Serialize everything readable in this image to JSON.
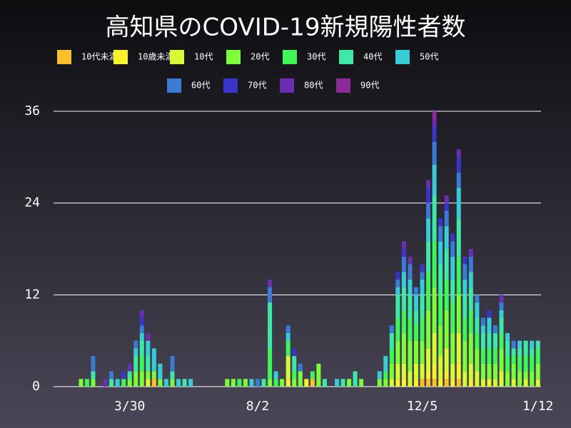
{
  "chart_data": {
    "type": "stacked_bar",
    "title": "高知県のCOVID-19新規陽性者数",
    "categories": [
      null,
      null,
      null,
      null,
      null,
      null,
      null,
      null,
      null,
      null,
      null,
      null,
      "3/30",
      null,
      null,
      null,
      null,
      null,
      null,
      null,
      null,
      null,
      null,
      null,
      null,
      null,
      null,
      null,
      null,
      null,
      null,
      null,
      null,
      "8/2",
      null,
      null,
      null,
      null,
      null,
      null,
      null,
      null,
      null,
      null,
      null,
      null,
      null,
      null,
      null,
      null,
      null,
      null,
      null,
      null,
      null,
      null,
      null,
      null,
      null,
      null,
      "12/5",
      null,
      null,
      null,
      null,
      null,
      null,
      null,
      null,
      null,
      null,
      null,
      null,
      null,
      null,
      null,
      null,
      null,
      null,
      "1/12"
    ],
    "ylim": [
      0,
      36
    ],
    "yticks": [
      0,
      12,
      24,
      36
    ],
    "grid": true,
    "series": [
      {
        "name": "10代未満",
        "color": "#f9c02c",
        "values": [
          0,
          0,
          0,
          0,
          0,
          0,
          0,
          0,
          0,
          0,
          0,
          0,
          0,
          0,
          0,
          0,
          1,
          0,
          0,
          0,
          0,
          0,
          0,
          0,
          0,
          0,
          0,
          0,
          0,
          0,
          0,
          0,
          0,
          0,
          0,
          0,
          0,
          0,
          0,
          0,
          0,
          0,
          1,
          0,
          0,
          0,
          0,
          0,
          0,
          0,
          0,
          0,
          0,
          0,
          0,
          0,
          0,
          0,
          0,
          0,
          1,
          1,
          1,
          0,
          1,
          0,
          1,
          0,
          0,
          0,
          0,
          0,
          0,
          0,
          0,
          0,
          0,
          0,
          0,
          0
        ]
      },
      {
        "name": "10歳未満",
        "color": "#f7f22b",
        "values": [
          0,
          0,
          0,
          0,
          0,
          0,
          0,
          0,
          0,
          0,
          0,
          0,
          0,
          0,
          0,
          0,
          0,
          0,
          0,
          0,
          0,
          0,
          0,
          0,
          0,
          0,
          0,
          0,
          0,
          0,
          0,
          0,
          0,
          0,
          0,
          0,
          0,
          0,
          1,
          0,
          0,
          1,
          0,
          0,
          0,
          0,
          0,
          0,
          0,
          0,
          0,
          0,
          0,
          0,
          0,
          0,
          1,
          1,
          0,
          1,
          0,
          1,
          2,
          1,
          1,
          1,
          2,
          0,
          1,
          0,
          0,
          1,
          0,
          0,
          0,
          0,
          0,
          0,
          0,
          0
        ]
      },
      {
        "name": "10代",
        "color": "#d5fb36",
        "values": [
          0,
          0,
          0,
          0,
          0,
          0,
          0,
          0,
          0,
          0,
          0,
          0,
          0,
          0,
          0,
          1,
          0,
          0,
          0,
          0,
          0,
          0,
          0,
          0,
          0,
          0,
          0,
          0,
          0,
          0,
          0,
          0,
          0,
          0,
          0,
          0,
          0,
          0,
          3,
          0,
          0,
          0,
          0,
          0,
          0,
          0,
          0,
          0,
          0,
          0,
          0,
          0,
          0,
          0,
          0,
          1,
          2,
          2,
          2,
          2,
          2,
          3,
          4,
          3,
          3,
          2,
          4,
          2,
          2,
          2,
          1,
          0,
          1,
          2,
          0,
          1,
          0,
          1,
          0,
          1
        ]
      },
      {
        "name": "20代",
        "color": "#7dfc3c",
        "values": [
          0,
          0,
          0,
          0,
          1,
          0,
          1,
          0,
          0,
          0,
          0,
          0,
          1,
          2,
          2,
          1,
          1,
          1,
          0,
          1,
          0,
          0,
          0,
          0,
          0,
          0,
          0,
          0,
          1,
          1,
          0,
          1,
          0,
          0,
          0,
          1,
          0,
          1,
          0,
          1,
          2,
          0,
          0,
          3,
          0,
          0,
          0,
          0,
          1,
          0,
          1,
          0,
          0,
          1,
          1,
          2,
          3,
          4,
          4,
          3,
          3,
          5,
          6,
          4,
          5,
          4,
          5,
          4,
          4,
          3,
          2,
          2,
          2,
          3,
          2,
          2,
          2,
          1,
          2,
          2
        ]
      },
      {
        "name": "30代",
        "color": "#3ef55a",
        "values": [
          0,
          0,
          0,
          0,
          0,
          1,
          0,
          0,
          0,
          0,
          0,
          1,
          0,
          0,
          2,
          0,
          0,
          0,
          0,
          0,
          0,
          0,
          0,
          0,
          0,
          0,
          0,
          0,
          0,
          0,
          1,
          0,
          0,
          0,
          0,
          4,
          1,
          0,
          2,
          1,
          0,
          0,
          1,
          0,
          0,
          0,
          0,
          0,
          0,
          0,
          0,
          0,
          0,
          0,
          1,
          2,
          3,
          3,
          3,
          2,
          3,
          5,
          6,
          4,
          4,
          4,
          5,
          3,
          3,
          2,
          2,
          2,
          2,
          2,
          2,
          1,
          2,
          2,
          2,
          2
        ]
      },
      {
        "name": "40代",
        "color": "#3ee8a7",
        "values": [
          0,
          0,
          0,
          0,
          0,
          0,
          1,
          0,
          0,
          1,
          0,
          0,
          1,
          2,
          2,
          2,
          0,
          0,
          0,
          1,
          0,
          1,
          0,
          0,
          0,
          0,
          0,
          0,
          0,
          0,
          0,
          0,
          0,
          0,
          1,
          6,
          0,
          0,
          0,
          2,
          0,
          0,
          0,
          0,
          1,
          0,
          0,
          1,
          0,
          2,
          0,
          0,
          0,
          0,
          0,
          2,
          3,
          3,
          3,
          2,
          3,
          4,
          6,
          4,
          4,
          3,
          5,
          3,
          3,
          2,
          2,
          2,
          2,
          2,
          2,
          1,
          1,
          2,
          1,
          1
        ]
      },
      {
        "name": "50代",
        "color": "#38cbd8",
        "values": [
          0,
          0,
          0,
          0,
          0,
          0,
          0,
          0,
          0,
          0,
          1,
          0,
          0,
          1,
          1,
          2,
          3,
          2,
          1,
          0,
          1,
          0,
          1,
          0,
          0,
          0,
          0,
          0,
          0,
          0,
          0,
          0,
          1,
          0,
          0,
          0,
          1,
          0,
          1,
          0,
          0,
          0,
          0,
          0,
          0,
          0,
          1,
          0,
          0,
          0,
          0,
          0,
          0,
          1,
          2,
          0,
          1,
          2,
          2,
          2,
          2,
          3,
          4,
          3,
          3,
          3,
          4,
          2,
          2,
          2,
          1,
          2,
          0,
          1,
          1,
          0,
          1,
          0,
          1,
          0
        ]
      },
      {
        "name": "60代",
        "color": "#3a7bd5",
        "values": [
          0,
          0,
          0,
          0,
          0,
          0,
          2,
          0,
          0,
          1,
          0,
          0,
          0,
          1,
          1,
          0,
          0,
          0,
          0,
          2,
          0,
          0,
          0,
          0,
          0,
          0,
          0,
          0,
          0,
          0,
          0,
          0,
          0,
          1,
          0,
          2,
          0,
          0,
          1,
          0,
          1,
          0,
          0,
          0,
          0,
          0,
          0,
          0,
          0,
          0,
          0,
          0,
          0,
          0,
          0,
          1,
          1,
          2,
          2,
          1,
          1,
          2,
          3,
          2,
          2,
          2,
          2,
          2,
          2,
          1,
          1,
          0,
          1,
          1,
          0,
          1,
          0,
          0,
          0,
          0
        ]
      },
      {
        "name": "70代",
        "color": "#3a35c8",
        "values": [
          0,
          0,
          0,
          0,
          0,
          0,
          0,
          0,
          0,
          0,
          0,
          1,
          0,
          0,
          1,
          0,
          0,
          0,
          0,
          0,
          0,
          0,
          0,
          0,
          0,
          0,
          0,
          0,
          0,
          0,
          0,
          0,
          0,
          0,
          0,
          0,
          0,
          0,
          0,
          1,
          0,
          0,
          0,
          0,
          0,
          0,
          0,
          0,
          0,
          0,
          0,
          0,
          0,
          0,
          0,
          0,
          1,
          1,
          0,
          0,
          1,
          2,
          2,
          1,
          1,
          1,
          2,
          1,
          0,
          0,
          0,
          1,
          0,
          0,
          0,
          0,
          0,
          0,
          0,
          0
        ]
      },
      {
        "name": "80代",
        "color": "#6a2fb0",
        "values": [
          0,
          0,
          0,
          0,
          0,
          0,
          0,
          0,
          1,
          0,
          0,
          0,
          1,
          0,
          1,
          1,
          0,
          0,
          0,
          0,
          0,
          0,
          0,
          0,
          0,
          0,
          0,
          0,
          0,
          0,
          0,
          0,
          0,
          0,
          0,
          1,
          0,
          0,
          0,
          0,
          0,
          0,
          0,
          0,
          0,
          0,
          0,
          0,
          0,
          0,
          0,
          0,
          0,
          0,
          0,
          0,
          0,
          1,
          1,
          0,
          0,
          1,
          1,
          0,
          1,
          0,
          1,
          0,
          1,
          0,
          0,
          0,
          0,
          1,
          0,
          0,
          0,
          0,
          0,
          0
        ]
      },
      {
        "name": "90代",
        "color": "#8c2a9a",
        "values": [
          0,
          0,
          0,
          0,
          0,
          0,
          0,
          0,
          0,
          0,
          0,
          0,
          0,
          0,
          0,
          0,
          0,
          0,
          0,
          0,
          0,
          0,
          0,
          0,
          0,
          0,
          0,
          0,
          0,
          0,
          0,
          0,
          0,
          0,
          0,
          0,
          0,
          0,
          0,
          0,
          0,
          0,
          0,
          0,
          0,
          0,
          0,
          0,
          0,
          0,
          0,
          0,
          0,
          0,
          0,
          0,
          0,
          0,
          0,
          0,
          0,
          0,
          1,
          0,
          0,
          0,
          0,
          0,
          0,
          0,
          0,
          0,
          0,
          0,
          0,
          0,
          0,
          0,
          0,
          0
        ]
      }
    ]
  }
}
